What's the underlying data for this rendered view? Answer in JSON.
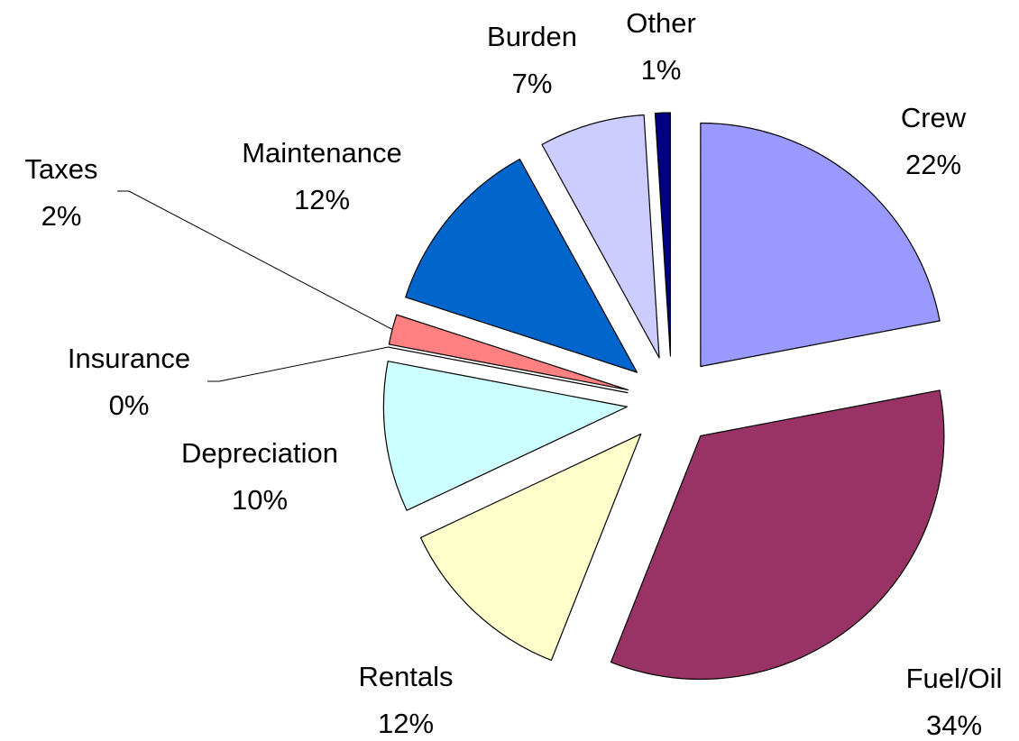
{
  "chart_data": {
    "type": "pie",
    "categories": [
      "Crew",
      "Fuel/Oil",
      "Rentals",
      "Depreciation",
      "Insurance",
      "Taxes",
      "Maintenance",
      "Burden",
      "Other"
    ],
    "values": [
      22,
      34,
      12,
      10,
      0,
      2,
      12,
      7,
      1
    ],
    "value_labels": [
      "22%",
      "34%",
      "12%",
      "10%",
      "0%",
      "2%",
      "12%",
      "7%",
      "1%"
    ],
    "colors": [
      "#9999ff",
      "#993366",
      "#ffffcc",
      "#ccffff",
      "#660066",
      "#ff8080",
      "#0066cc",
      "#ccccff",
      "#000080"
    ]
  }
}
